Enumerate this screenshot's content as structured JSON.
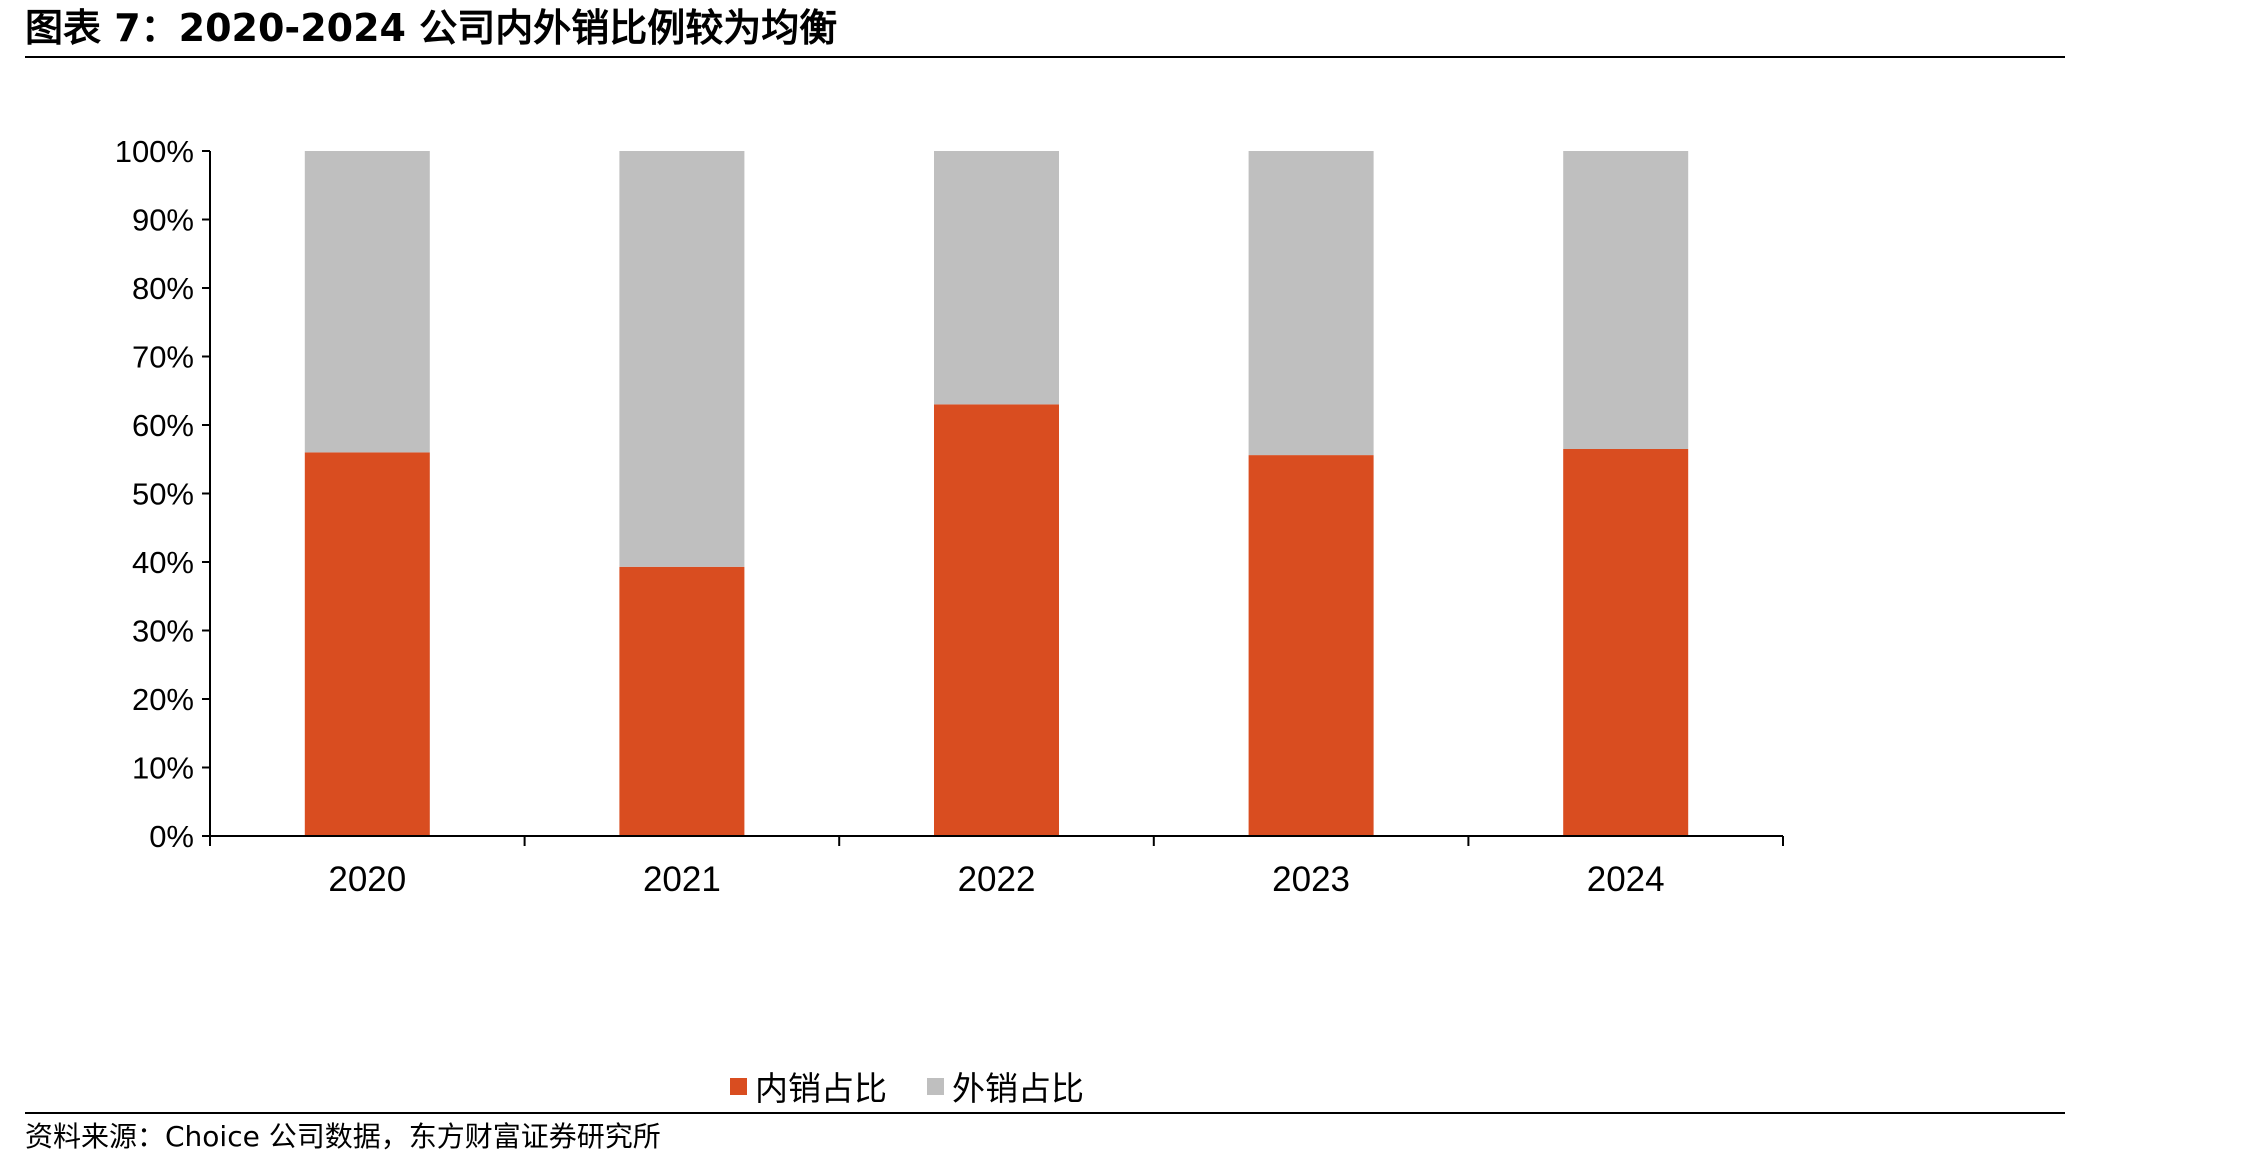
{
  "header": {
    "title": "图表 7：2020-2024 公司内外销比例较为均衡"
  },
  "footer": {
    "source": "资料来源：Choice 公司数据，东方财富证券研究所"
  },
  "colors": {
    "domestic": "#D94D20",
    "foreign": "#BFBFBF"
  },
  "chart_data": {
    "type": "bar",
    "stacked": true,
    "categories": [
      "2020",
      "2021",
      "2022",
      "2023",
      "2024"
    ],
    "series": [
      {
        "name": "内销占比",
        "values": [
          56,
          39.3,
          63,
          55.6,
          56.5
        ]
      },
      {
        "name": "外销占比",
        "values": [
          44,
          60.7,
          37,
          44.4,
          43.5
        ]
      }
    ],
    "ylim": [
      0,
      100
    ],
    "yticks": [
      "0%",
      "10%",
      "20%",
      "30%",
      "40%",
      "50%",
      "60%",
      "70%",
      "80%",
      "90%",
      "100%"
    ],
    "legend_position": "bottom",
    "grid": false
  }
}
